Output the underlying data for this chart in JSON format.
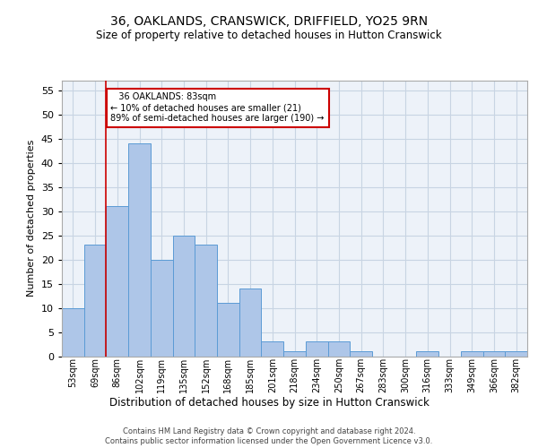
{
  "title": "36, OAKLANDS, CRANSWICK, DRIFFIELD, YO25 9RN",
  "subtitle": "Size of property relative to detached houses in Hutton Cranswick",
  "xlabel": "Distribution of detached houses by size in Hutton Cranswick",
  "ylabel": "Number of detached properties",
  "categories": [
    "53sqm",
    "69sqm",
    "86sqm",
    "102sqm",
    "119sqm",
    "135sqm",
    "152sqm",
    "168sqm",
    "185sqm",
    "201sqm",
    "218sqm",
    "234sqm",
    "250sqm",
    "267sqm",
    "283sqm",
    "300sqm",
    "316sqm",
    "333sqm",
    "349sqm",
    "366sqm",
    "382sqm"
  ],
  "values": [
    10,
    23,
    31,
    44,
    20,
    25,
    23,
    11,
    14,
    3,
    1,
    3,
    3,
    1,
    0,
    0,
    1,
    0,
    1,
    1,
    1
  ],
  "bar_color": "#aec6e8",
  "bar_edge_color": "#5b9bd5",
  "grid_color": "#c8d4e3",
  "bg_color": "#edf2f9",
  "annotation_text": "   36 OAKLANDS: 83sqm\n← 10% of detached houses are smaller (21)\n89% of semi-detached houses are larger (190) →",
  "annotation_box_color": "#ffffff",
  "annotation_box_edge_color": "#cc0000",
  "red_line_x": 1.5,
  "ylim": [
    0,
    57
  ],
  "yticks": [
    0,
    5,
    10,
    15,
    20,
    25,
    30,
    35,
    40,
    45,
    50,
    55
  ],
  "footer": "Contains HM Land Registry data © Crown copyright and database right 2024.\nContains public sector information licensed under the Open Government Licence v3.0.",
  "title_fontsize": 10,
  "subtitle_fontsize": 8.5,
  "xlabel_fontsize": 8.5,
  "ylabel_fontsize": 8,
  "tick_fontsize": 7,
  "footer_fontsize": 6
}
